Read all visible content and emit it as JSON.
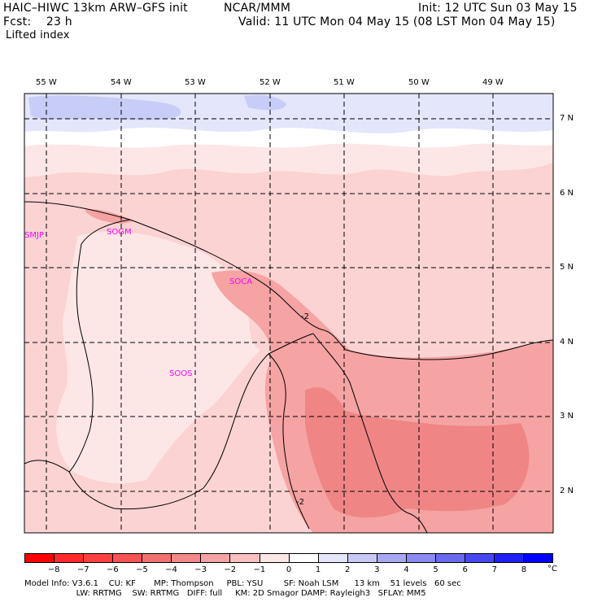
{
  "header": {
    "model": "HAIC–HIWC 13km ARW–GFS init",
    "org": "NCAR/MMM",
    "init": "Init: 12 UTC Sun 03 May 15",
    "fcst": "Fcst:    23 h",
    "valid": "Valid: 11 UTC Mon 04 May 15 (08 LST Mon 04 May 15)",
    "field": "Lifted index"
  },
  "map": {
    "lon_labels": [
      "55 W",
      "54 W",
      "53 W",
      "52 W",
      "51 W",
      "50 W",
      "49 W"
    ],
    "lat_labels": [
      "7 N",
      "6 N",
      "5 N",
      "4 N",
      "3 N",
      "2 N"
    ],
    "stations": [
      "SMJP",
      "SOGM",
      "SOCA",
      "SOOS"
    ],
    "contour_labels": [
      "-2",
      "-2"
    ],
    "colors": {
      "light_pink": "#fbd3d3",
      "pale": "#fde6e6",
      "mid_pink": "#f5a3a3",
      "deep_pink": "#ef8585",
      "white": "#ffffff",
      "light_blue": "#e4e6fb",
      "blue": "#c8cdf7",
      "station": "#ff00ff"
    }
  },
  "colorbar": {
    "ticks": [
      "−8",
      "−7",
      "−6",
      "−5",
      "−4",
      "−3",
      "−2",
      "−1",
      "0",
      "1",
      "2",
      "3",
      "4",
      "5",
      "6",
      "7",
      "8"
    ],
    "unit": "°C",
    "colors": [
      "#ff0000",
      "#ff2a2a",
      "#ff4040",
      "#f55555",
      "#f27070",
      "#f28888",
      "#f5a3a3",
      "#f8c0c0",
      "#fde6e6",
      "#ffffff",
      "#e6e6fb",
      "#c8c8f5",
      "#a8a8f2",
      "#8a8af0",
      "#6a6aee",
      "#4848f0",
      "#2020f5",
      "#0000ff"
    ]
  },
  "footer": {
    "line1": "Model Info: V3.6.1    CU: KF       MP: Thompson     PBL: YSU        SF: Noah LSM      13 km    51 levels   60 sec",
    "line2": "                    LW: RRTMG    SW: RRTMG   DIFF: full     KM: 2D Smagor DAMP: Rayleigh3   SFLAY: MM5"
  }
}
